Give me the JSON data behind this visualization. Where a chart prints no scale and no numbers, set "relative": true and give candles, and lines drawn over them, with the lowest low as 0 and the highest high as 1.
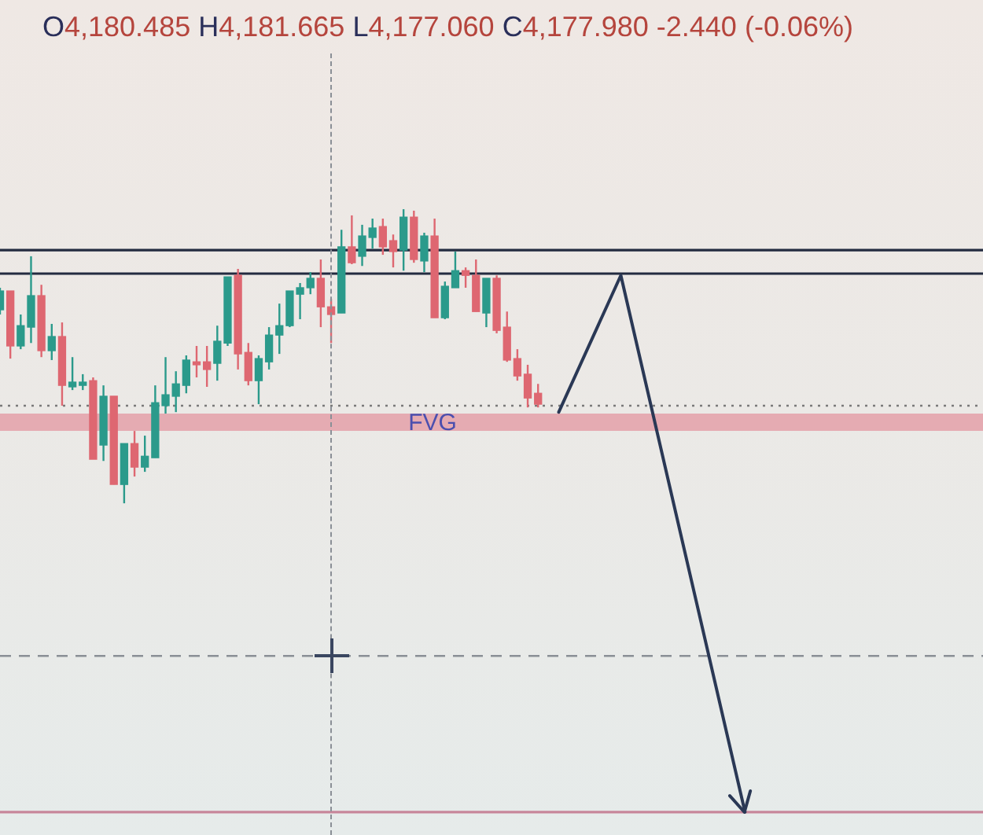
{
  "chart_data": {
    "type": "candlestick",
    "title": "O4,180.485 H4,181.665 L4,177.060 C4,177.980 -2.440 (-0.06%)",
    "relative": true,
    "categories": [
      null,
      null,
      null,
      null,
      null,
      null,
      null,
      null,
      null,
      null,
      null,
      null,
      null,
      null,
      null,
      null,
      null,
      null,
      null,
      null,
      null,
      null,
      null,
      null,
      null,
      null,
      null,
      null,
      null,
      null,
      null,
      null,
      null,
      null,
      null,
      null,
      null,
      null,
      null,
      null,
      null,
      null,
      null,
      null,
      null,
      null,
      null,
      null,
      null,
      null,
      null,
      null,
      null,
      null,
      null,
      null,
      null,
      null,
      null,
      null,
      null,
      null,
      null,
      null,
      null,
      null,
      null,
      null,
      null,
      null,
      null,
      null,
      null,
      null,
      null,
      null,
      null,
      null,
      null,
      null,
      null,
      null,
      null,
      null,
      null,
      null,
      null,
      null,
      null,
      null,
      null,
      null,
      null,
      null,
      null,
      null
    ],
    "ohlc": [
      [
        0.658,
        0.733,
        0.642,
        0.722
      ],
      [
        0.722,
        0.722,
        0.492,
        0.535
      ],
      [
        0.535,
        0.642,
        0.524,
        0.604
      ],
      [
        0.599,
        0.84,
        0.545,
        0.706
      ],
      [
        0.706,
        0.743,
        0.497,
        0.519
      ],
      [
        0.519,
        0.61,
        0.487,
        0.567
      ],
      [
        0.567,
        0.615,
        0.332,
        0.401
      ],
      [
        0.396,
        0.497,
        0.385,
        0.412
      ],
      [
        0.401,
        0.439,
        0.385,
        0.412
      ],
      [
        0.417,
        0.428,
        0.15,
        0.15
      ],
      [
        0.198,
        0.401,
        0.144,
        0.364
      ],
      [
        0.364,
        0.364,
        0.064,
        0.064
      ],
      [
        0.064,
        0.203,
        0,
        0.203
      ],
      [
        0.203,
        0.246,
        0.091,
        0.123
      ],
      [
        0.123,
        0.23,
        0.107,
        0.16
      ],
      [
        0.155,
        0.401,
        0.155,
        0.342
      ],
      [
        0.332,
        0.497,
        0.305,
        0.369
      ],
      [
        0.364,
        0.449,
        0.31,
        0.406
      ],
      [
        0.401,
        0.503,
        0.374,
        0.487
      ],
      [
        0.481,
        0.535,
        0.428,
        0.471
      ],
      [
        0.481,
        0.535,
        0.396,
        0.455
      ],
      [
        0.476,
        0.604,
        0.417,
        0.551
      ],
      [
        0.545,
        0.77,
        0.535,
        0.77
      ],
      [
        0.775,
        0.797,
        0.455,
        0.508
      ],
      [
        0.513,
        0.545,
        0.401,
        0.417
      ],
      [
        0.417,
        0.503,
        0.337,
        0.492
      ],
      [
        0.481,
        0.599,
        0.455,
        0.572
      ],
      [
        0.572,
        0.679,
        0.508,
        0.604
      ],
      [
        0.604,
        0.722,
        0.599,
        0.722
      ],
      [
        0.711,
        0.749,
        0.626,
        0.733
      ],
      [
        0.733,
        0.786,
        0.711,
        0.765
      ],
      [
        0.765,
        0.829,
        0.599,
        0.668
      ],
      [
        0.668,
        0.695,
        0.545,
        0.642
      ],
      [
        0.647,
        0.93,
        0.647,
        0.872
      ],
      [
        0.872,
        0.979,
        0.813,
        0.818
      ],
      [
        0.84,
        0.947,
        0.807,
        0.909
      ],
      [
        0.904,
        0.968,
        0.866,
        0.936
      ],
      [
        0.941,
        0.968,
        0.845,
        0.872
      ],
      [
        0.893,
        0.914,
        0.802,
        0.856
      ],
      [
        0.861,
        1,
        0.791,
        0.973
      ],
      [
        0.973,
        0.995,
        0.818,
        0.829
      ],
      [
        0.824,
        0.92,
        0.786,
        0.909
      ],
      [
        0.909,
        0.968,
        0.631,
        0.631
      ],
      [
        0.631,
        0.754,
        0.626,
        0.738
      ],
      [
        0.733,
        0.856,
        0.733,
        0.791
      ],
      [
        0.791,
        0.802,
        0.733,
        0.775
      ],
      [
        0.775,
        0.829,
        0.652,
        0.652
      ],
      [
        0.647,
        0.765,
        0.599,
        0.765
      ],
      [
        0.765,
        0.775,
        0.578,
        0.588
      ],
      [
        0.599,
        0.652,
        0.481,
        0.487
      ],
      [
        0.492,
        0.524,
        0.417,
        0.433
      ],
      [
        0.439,
        0.471,
        0.326,
        0.358
      ],
      [
        0.374,
        0.406,
        0.326,
        0.337
      ],
      null,
      null,
      null,
      null,
      null,
      null,
      null,
      null,
      null,
      null,
      null,
      null,
      null,
      null,
      null,
      null,
      null,
      null,
      null,
      null,
      null,
      null,
      null,
      null,
      null,
      null,
      null,
      null,
      null,
      null,
      null,
      null,
      null,
      null,
      null,
      null,
      null,
      null,
      null,
      null,
      null,
      null,
      null
    ],
    "colors": [
      "#2b9a8b",
      "#de6771",
      "#2b9a8b",
      "#2b9a8b",
      "#de6771",
      "#2b9a8b",
      "#de6771",
      "#2b9a8b",
      "#2b9a8b",
      "#de6771",
      "#2b9a8b",
      "#de6771",
      "#2b9a8b",
      "#de6771",
      "#2b9a8b",
      "#2b9a8b",
      "#2b9a8b",
      "#2b9a8b",
      "#2b9a8b",
      "#de6771",
      "#de6771",
      "#2b9a8b",
      "#2b9a8b",
      "#de6771",
      "#de6771",
      "#2b9a8b",
      "#2b9a8b",
      "#2b9a8b",
      "#2b9a8b",
      "#2b9a8b",
      "#2b9a8b",
      "#de6771",
      "#de6771",
      "#2b9a8b",
      "#de6771",
      "#2b9a8b",
      "#2b9a8b",
      "#de6771",
      "#de6771",
      "#2b9a8b",
      "#de6771",
      "#2b9a8b",
      "#de6771",
      "#2b9a8b",
      "#2b9a8b",
      "#de6771",
      "#de6771",
      "#2b9a8b",
      "#de6771",
      "#de6771",
      "#de6771",
      "#de6771",
      "#de6771",
      null,
      null,
      null,
      null,
      null,
      null,
      null,
      null,
      null,
      null,
      null,
      null,
      null,
      null,
      null,
      null,
      null,
      null,
      null,
      null,
      null,
      null,
      null,
      null,
      null,
      null,
      null,
      null,
      null,
      null,
      null,
      null,
      null,
      null,
      null,
      null,
      null,
      null,
      null,
      null,
      null,
      null,
      null
    ],
    "series": [
      {
        "type": "line",
        "color": "#2a3855",
        "values": [
          null,
          null,
          null,
          null,
          null,
          null,
          null,
          null,
          null,
          null,
          null,
          null,
          null,
          null,
          null,
          null,
          null,
          null,
          null,
          null,
          null,
          null,
          null,
          null,
          null,
          null,
          null,
          null,
          null,
          null,
          null,
          null,
          null,
          null,
          null,
          null,
          null,
          null,
          null,
          null,
          null,
          null,
          null,
          null,
          null,
          null,
          null,
          null,
          null,
          null,
          null,
          null,
          null,
          null,
          0.31,
          null,
          null,
          null,
          null,
          null,
          0.775,
          null,
          null,
          null,
          null,
          null,
          null,
          null,
          null,
          null,
          null,
          null,
          -1.05,
          null,
          null,
          null,
          null,
          null,
          null,
          null,
          null,
          null,
          null,
          null,
          null,
          null,
          null,
          null,
          null,
          null,
          null,
          null,
          null,
          null,
          null,
          null
        ]
      }
    ],
    "ref_lines": [
      {
        "axis": "y",
        "value": 0.861,
        "color": "#232b40",
        "line_style": "solid"
      },
      {
        "axis": "y",
        "value": 0.781,
        "color": "#232b40",
        "line_style": "solid"
      },
      {
        "axis": "y",
        "value": 0.332,
        "color": "#7a7a7a",
        "line_style": "dotted"
      },
      {
        "axis": "y",
        "value": -0.519,
        "color": "#8a8f96",
        "line_style": "dashed"
      },
      {
        "axis": "y",
        "value": -1.05,
        "color": "#c7869a",
        "line_style": "solid"
      }
    ],
    "bands": [
      {
        "axis": "y",
        "from": 0.246,
        "to": 0.305,
        "label": "FVG",
        "color": "#e4a0a8"
      }
    ],
    "marker": "none",
    "grid": false,
    "legend": false,
    "tick_labels": false
  }
}
